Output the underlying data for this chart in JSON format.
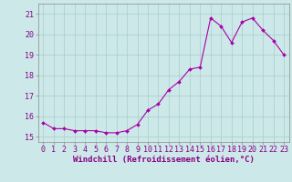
{
  "x": [
    0,
    1,
    2,
    3,
    4,
    5,
    6,
    7,
    8,
    9,
    10,
    11,
    12,
    13,
    14,
    15,
    16,
    17,
    18,
    19,
    20,
    21,
    22,
    23
  ],
  "y": [
    15.7,
    15.4,
    15.4,
    15.3,
    15.3,
    15.3,
    15.2,
    15.2,
    15.3,
    15.6,
    16.3,
    16.6,
    17.3,
    17.7,
    18.3,
    18.4,
    20.8,
    20.4,
    19.6,
    20.6,
    20.8,
    20.2,
    19.7,
    19.0
  ],
  "line_color": "#aa00aa",
  "marker_color": "#aa00aa",
  "bg_color": "#cce8e8",
  "grid_color": "#aacccc",
  "xlabel": "Windchill (Refroidissement éolien,°C)",
  "xlim": [
    -0.5,
    23.5
  ],
  "ylim": [
    14.75,
    21.5
  ],
  "yticks": [
    15,
    16,
    17,
    18,
    19,
    20,
    21
  ],
  "xtick_labels": [
    "0",
    "1",
    "2",
    "3",
    "4",
    "5",
    "6",
    "7",
    "8",
    "9",
    "10",
    "11",
    "12",
    "13",
    "14",
    "15",
    "16",
    "17",
    "18",
    "19",
    "20",
    "21",
    "22",
    "23"
  ],
  "tick_color": "#880088",
  "axis_color": "#888888",
  "label_fontsize": 6.5,
  "tick_fontsize": 6.0
}
